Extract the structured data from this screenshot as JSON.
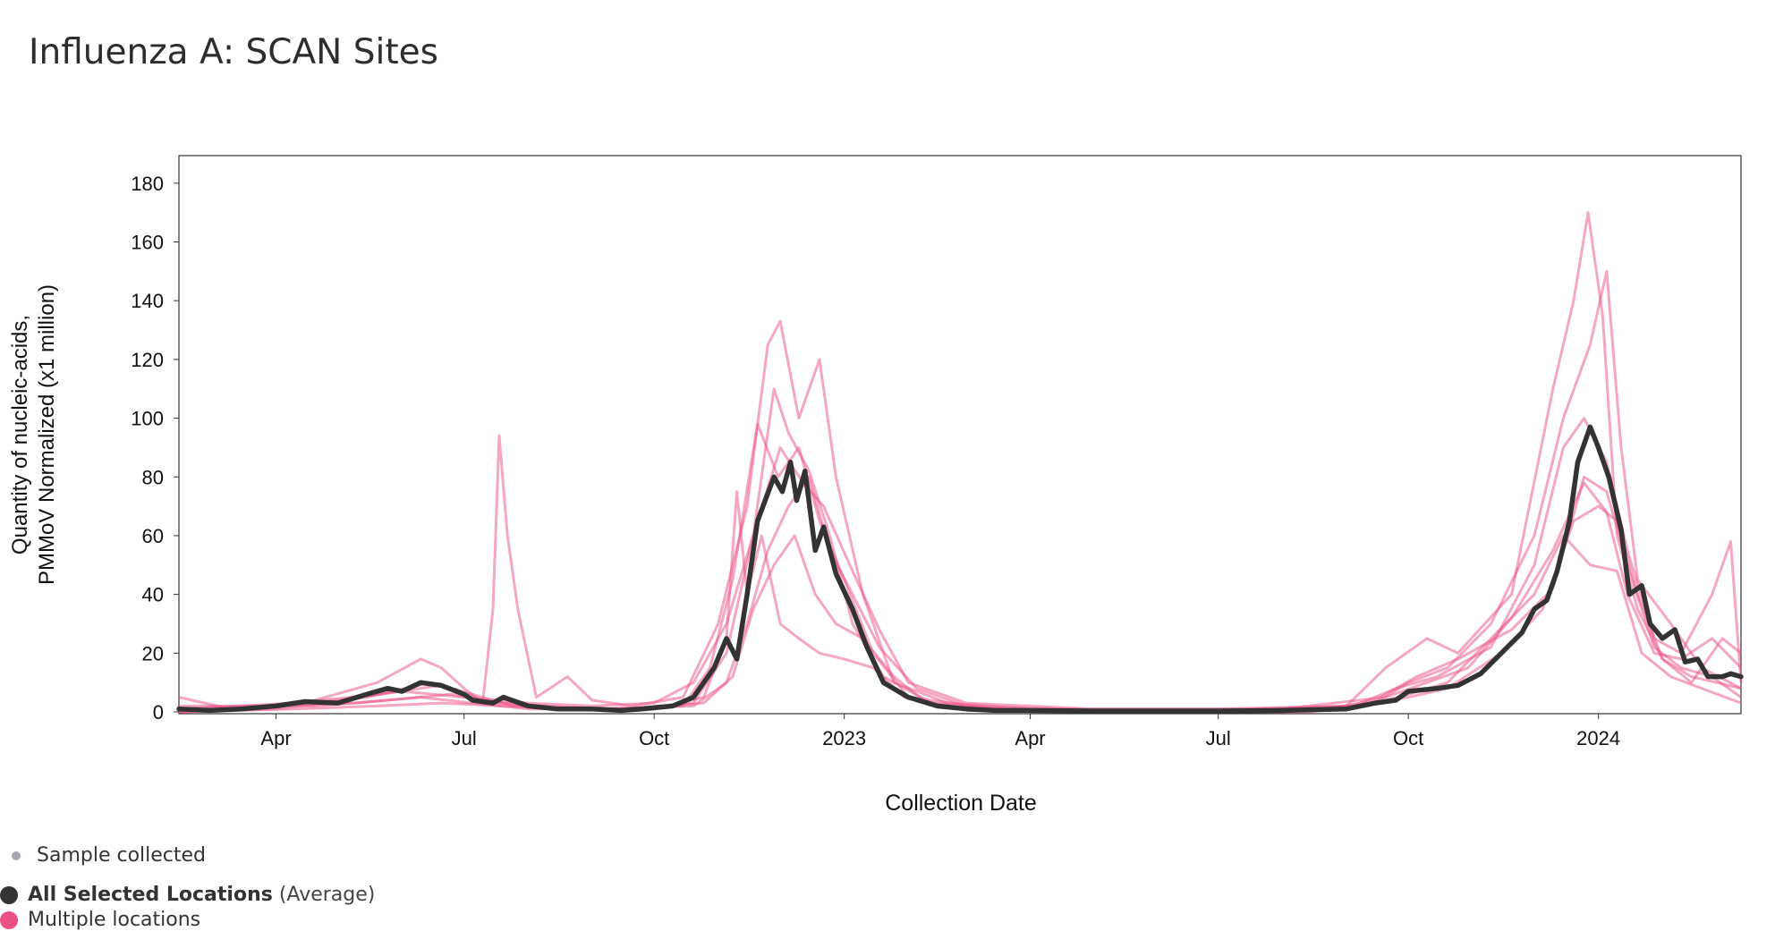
{
  "title": "Influenza A: SCAN Sites",
  "chart_data": {
    "type": "line",
    "title": "",
    "xlabel": "Collection Date",
    "ylabel_lines": [
      "Quantity of nucleic-acids,",
      "PMMoV Normalized (x1 million)"
    ],
    "xlim": [
      "2022-02-13",
      "2024-03-10"
    ],
    "ylim": [
      0,
      190
    ],
    "grid": false,
    "yticks": [
      0,
      20,
      40,
      60,
      80,
      100,
      120,
      140,
      160,
      180
    ],
    "xticks": [
      {
        "date": "2022-04-01",
        "label": "Apr"
      },
      {
        "date": "2022-07-01",
        "label": "Jul"
      },
      {
        "date": "2022-10-01",
        "label": "Oct"
      },
      {
        "date": "2023-01-01",
        "label": "2023"
      },
      {
        "date": "2023-04-01",
        "label": "Apr"
      },
      {
        "date": "2023-07-01",
        "label": "Jul"
      },
      {
        "date": "2023-10-01",
        "label": "Oct"
      },
      {
        "date": "2024-01-01",
        "label": "2024"
      }
    ],
    "average_series": {
      "name": "All Selected Locations",
      "color": "#333333",
      "points": [
        [
          "2022-02-13",
          1
        ],
        [
          "2022-02-28",
          0.5
        ],
        [
          "2022-03-15",
          1
        ],
        [
          "2022-04-01",
          2
        ],
        [
          "2022-04-15",
          3.5
        ],
        [
          "2022-05-01",
          3
        ],
        [
          "2022-05-15",
          6
        ],
        [
          "2022-05-25",
          8
        ],
        [
          "2022-06-01",
          7
        ],
        [
          "2022-06-10",
          10
        ],
        [
          "2022-06-20",
          9
        ],
        [
          "2022-07-01",
          6
        ],
        [
          "2022-07-05",
          4
        ],
        [
          "2022-07-15",
          3
        ],
        [
          "2022-07-20",
          5
        ],
        [
          "2022-08-01",
          2
        ],
        [
          "2022-08-15",
          1
        ],
        [
          "2022-09-01",
          1
        ],
        [
          "2022-09-15",
          0.5
        ],
        [
          "2022-09-25",
          1
        ],
        [
          "2022-10-10",
          2
        ],
        [
          "2022-10-20",
          5
        ],
        [
          "2022-10-30",
          15
        ],
        [
          "2022-11-05",
          25
        ],
        [
          "2022-11-10",
          18
        ],
        [
          "2022-11-15",
          40
        ],
        [
          "2022-11-20",
          65
        ],
        [
          "2022-11-28",
          80
        ],
        [
          "2022-12-02",
          75
        ],
        [
          "2022-12-06",
          85
        ],
        [
          "2022-12-09",
          72
        ],
        [
          "2022-12-13",
          82
        ],
        [
          "2022-12-18",
          55
        ],
        [
          "2022-12-22",
          63
        ],
        [
          "2022-12-28",
          47
        ],
        [
          "2023-01-05",
          35
        ],
        [
          "2023-01-12",
          22
        ],
        [
          "2023-01-20",
          10
        ],
        [
          "2023-02-01",
          5
        ],
        [
          "2023-02-15",
          2
        ],
        [
          "2023-03-01",
          1
        ],
        [
          "2023-03-15",
          0.5
        ],
        [
          "2023-04-01",
          0.5
        ],
        [
          "2023-05-01",
          0.3
        ],
        [
          "2023-06-01",
          0.3
        ],
        [
          "2023-07-01",
          0.3
        ],
        [
          "2023-08-01",
          0.5
        ],
        [
          "2023-09-01",
          1
        ],
        [
          "2023-09-15",
          3
        ],
        [
          "2023-09-25",
          4
        ],
        [
          "2023-10-01",
          7
        ],
        [
          "2023-10-15",
          8
        ],
        [
          "2023-10-25",
          9
        ],
        [
          "2023-11-05",
          13
        ],
        [
          "2023-11-15",
          20
        ],
        [
          "2023-11-25",
          27
        ],
        [
          "2023-12-01",
          35
        ],
        [
          "2023-12-07",
          38
        ],
        [
          "2023-12-12",
          48
        ],
        [
          "2023-12-18",
          65
        ],
        [
          "2023-12-22",
          85
        ],
        [
          "2023-12-28",
          97
        ],
        [
          "2024-01-01",
          90
        ],
        [
          "2024-01-06",
          80
        ],
        [
          "2024-01-12",
          62
        ],
        [
          "2024-01-16",
          40
        ],
        [
          "2024-01-22",
          43
        ],
        [
          "2024-01-26",
          30
        ],
        [
          "2024-02-01",
          25
        ],
        [
          "2024-02-07",
          28
        ],
        [
          "2024-02-12",
          17
        ],
        [
          "2024-02-18",
          18
        ],
        [
          "2024-02-23",
          12
        ],
        [
          "2024-03-01",
          12
        ],
        [
          "2024-03-05",
          13
        ],
        [
          "2024-03-10",
          12
        ]
      ]
    },
    "location_series": [
      [
        [
          "2022-02-13",
          5
        ],
        [
          "2022-03-10",
          1
        ],
        [
          "2022-04-15",
          3
        ],
        [
          "2022-05-20",
          10
        ],
        [
          "2022-06-10",
          18
        ],
        [
          "2022-06-20",
          15
        ],
        [
          "2022-07-01",
          8
        ],
        [
          "2022-07-10",
          3
        ],
        [
          "2022-07-15",
          35
        ],
        [
          "2022-07-18",
          94
        ],
        [
          "2022-07-22",
          60
        ],
        [
          "2022-07-27",
          35
        ],
        [
          "2022-08-05",
          5
        ],
        [
          "2022-08-20",
          12
        ],
        [
          "2022-09-01",
          4
        ],
        [
          "2022-09-20",
          2
        ],
        [
          "2022-10-15",
          5
        ],
        [
          "2022-11-01",
          30
        ],
        [
          "2022-11-15",
          70
        ],
        [
          "2022-11-25",
          125
        ],
        [
          "2022-12-01",
          133
        ],
        [
          "2022-12-10",
          100
        ],
        [
          "2022-12-20",
          120
        ],
        [
          "2022-12-28",
          80
        ],
        [
          "2023-01-10",
          40
        ],
        [
          "2023-01-25",
          10
        ],
        [
          "2023-02-20",
          3
        ],
        [
          "2023-04-01",
          1
        ],
        [
          "2023-07-01",
          1
        ],
        [
          "2023-09-01",
          2
        ],
        [
          "2023-09-20",
          15
        ],
        [
          "2023-10-10",
          25
        ],
        [
          "2023-10-25",
          20
        ],
        [
          "2023-11-20",
          40
        ],
        [
          "2023-12-10",
          110
        ],
        [
          "2023-12-20",
          140
        ],
        [
          "2023-12-27",
          170
        ],
        [
          "2024-01-03",
          135
        ],
        [
          "2024-01-10",
          60
        ],
        [
          "2024-01-20",
          35
        ],
        [
          "2024-02-01",
          18
        ],
        [
          "2024-02-15",
          10
        ],
        [
          "2024-03-01",
          25
        ],
        [
          "2024-03-10",
          20
        ]
      ],
      [
        [
          "2022-02-13",
          0
        ],
        [
          "2022-04-01",
          1
        ],
        [
          "2022-05-15",
          5
        ],
        [
          "2022-06-15",
          10
        ],
        [
          "2022-07-05",
          6
        ],
        [
          "2022-07-25",
          2
        ],
        [
          "2022-08-15",
          1
        ],
        [
          "2022-09-15",
          1
        ],
        [
          "2022-10-20",
          3
        ],
        [
          "2022-11-05",
          20
        ],
        [
          "2022-11-18",
          60
        ],
        [
          "2022-11-28",
          110
        ],
        [
          "2022-12-05",
          95
        ],
        [
          "2022-12-15",
          82
        ],
        [
          "2022-12-25",
          60
        ],
        [
          "2023-01-05",
          30
        ],
        [
          "2023-01-20",
          12
        ],
        [
          "2023-02-15",
          2
        ],
        [
          "2023-05-01",
          0
        ],
        [
          "2023-08-01",
          0
        ],
        [
          "2023-09-15",
          3
        ],
        [
          "2023-10-01",
          10
        ],
        [
          "2023-10-20",
          15
        ],
        [
          "2023-11-10",
          30
        ],
        [
          "2023-12-01",
          60
        ],
        [
          "2023-12-15",
          100
        ],
        [
          "2023-12-28",
          125
        ],
        [
          "2024-01-05",
          150
        ],
        [
          "2024-01-12",
          90
        ],
        [
          "2024-01-20",
          45
        ],
        [
          "2024-02-05",
          30
        ],
        [
          "2024-02-20",
          15
        ],
        [
          "2024-03-10",
          8
        ]
      ],
      [
        [
          "2022-02-13",
          1
        ],
        [
          "2022-04-10",
          3
        ],
        [
          "2022-05-20",
          6
        ],
        [
          "2022-06-20",
          9
        ],
        [
          "2022-07-10",
          4
        ],
        [
          "2022-08-01",
          2
        ],
        [
          "2022-09-01",
          1
        ],
        [
          "2022-10-15",
          2
        ],
        [
          "2022-10-28",
          15
        ],
        [
          "2022-11-08",
          45
        ],
        [
          "2022-11-20",
          98
        ],
        [
          "2022-11-30",
          80
        ],
        [
          "2022-12-10",
          90
        ],
        [
          "2022-12-20",
          65
        ],
        [
          "2023-01-01",
          45
        ],
        [
          "2023-01-15",
          20
        ],
        [
          "2023-02-01",
          5
        ],
        [
          "2023-03-15",
          1
        ],
        [
          "2023-06-01",
          0
        ],
        [
          "2023-09-01",
          1
        ],
        [
          "2023-09-25",
          8
        ],
        [
          "2023-10-15",
          12
        ],
        [
          "2023-11-10",
          22
        ],
        [
          "2023-12-01",
          50
        ],
        [
          "2023-12-15",
          90
        ],
        [
          "2023-12-25",
          100
        ],
        [
          "2024-01-05",
          85
        ],
        [
          "2024-01-15",
          55
        ],
        [
          "2024-01-28",
          25
        ],
        [
          "2024-02-10",
          20
        ],
        [
          "2024-02-25",
          40
        ],
        [
          "2024-03-05",
          58
        ],
        [
          "2024-03-10",
          10
        ]
      ],
      [
        [
          "2022-02-13",
          2
        ],
        [
          "2022-04-20",
          2
        ],
        [
          "2022-05-25",
          4
        ],
        [
          "2022-06-25",
          6
        ],
        [
          "2022-07-15",
          3
        ],
        [
          "2022-08-10",
          2
        ],
        [
          "2022-09-10",
          1
        ],
        [
          "2022-10-20",
          2
        ],
        [
          "2022-11-05",
          10
        ],
        [
          "2022-11-15",
          30
        ],
        [
          "2022-11-25",
          55
        ],
        [
          "2022-12-05",
          70
        ],
        [
          "2022-12-15",
          80
        ],
        [
          "2022-12-25",
          55
        ],
        [
          "2023-01-05",
          40
        ],
        [
          "2023-01-18",
          22
        ],
        [
          "2023-02-05",
          8
        ],
        [
          "2023-03-01",
          2
        ],
        [
          "2023-06-01",
          0
        ],
        [
          "2023-09-05",
          2
        ],
        [
          "2023-10-01",
          5
        ],
        [
          "2023-10-20",
          8
        ],
        [
          "2023-11-15",
          20
        ],
        [
          "2023-12-05",
          35
        ],
        [
          "2023-12-20",
          65
        ],
        [
          "2024-01-01",
          70
        ],
        [
          "2024-01-10",
          65
        ],
        [
          "2024-01-20",
          40
        ],
        [
          "2024-02-01",
          18
        ],
        [
          "2024-02-15",
          12
        ],
        [
          "2024-03-10",
          8
        ]
      ],
      [
        [
          "2022-02-13",
          0
        ],
        [
          "2022-04-01",
          2
        ],
        [
          "2022-05-10",
          3
        ],
        [
          "2022-06-10",
          5
        ],
        [
          "2022-07-05",
          3
        ],
        [
          "2022-08-01",
          1
        ],
        [
          "2022-09-20",
          1
        ],
        [
          "2022-10-25",
          3
        ],
        [
          "2022-11-08",
          12
        ],
        [
          "2022-11-18",
          35
        ],
        [
          "2022-11-28",
          50
        ],
        [
          "2022-12-08",
          60
        ],
        [
          "2022-12-18",
          40
        ],
        [
          "2022-12-28",
          30
        ],
        [
          "2023-01-10",
          25
        ],
        [
          "2023-01-25",
          12
        ],
        [
          "2023-02-10",
          3
        ],
        [
          "2023-04-01",
          0
        ],
        [
          "2023-08-15",
          0
        ],
        [
          "2023-09-15",
          4
        ],
        [
          "2023-10-05",
          12
        ],
        [
          "2023-10-25",
          18
        ],
        [
          "2023-11-20",
          28
        ],
        [
          "2023-12-10",
          42
        ],
        [
          "2023-12-25",
          80
        ],
        [
          "2024-01-05",
          75
        ],
        [
          "2024-01-15",
          50
        ],
        [
          "2024-01-28",
          22
        ],
        [
          "2024-02-10",
          15
        ],
        [
          "2024-02-25",
          12
        ],
        [
          "2024-03-10",
          5
        ]
      ],
      [
        [
          "2022-02-13",
          0
        ],
        [
          "2022-04-10",
          1
        ],
        [
          "2022-05-20",
          2
        ],
        [
          "2022-06-20",
          3
        ],
        [
          "2022-07-20",
          2
        ],
        [
          "2022-08-20",
          1
        ],
        [
          "2022-10-01",
          1
        ],
        [
          "2022-10-25",
          5
        ],
        [
          "2022-11-05",
          25
        ],
        [
          "2022-11-10",
          75
        ],
        [
          "2022-11-15",
          40
        ],
        [
          "2022-11-22",
          60
        ],
        [
          "2022-12-01",
          30
        ],
        [
          "2022-12-10",
          25
        ],
        [
          "2022-12-20",
          20
        ],
        [
          "2023-01-01",
          18
        ],
        [
          "2023-01-15",
          15
        ],
        [
          "2023-01-30",
          5
        ],
        [
          "2023-03-01",
          1
        ],
        [
          "2023-07-01",
          0
        ],
        [
          "2023-09-10",
          2
        ],
        [
          "2023-10-01",
          6
        ],
        [
          "2023-10-20",
          10
        ],
        [
          "2023-11-10",
          25
        ],
        [
          "2023-12-01",
          40
        ],
        [
          "2023-12-15",
          60
        ],
        [
          "2023-12-28",
          50
        ],
        [
          "2024-01-10",
          48
        ],
        [
          "2024-01-22",
          20
        ],
        [
          "2024-02-05",
          12
        ],
        [
          "2024-02-20",
          8
        ],
        [
          "2024-03-10",
          3
        ]
      ],
      [
        [
          "2022-02-13",
          1
        ],
        [
          "2022-04-01",
          2
        ],
        [
          "2022-05-01",
          4
        ],
        [
          "2022-06-01",
          7
        ],
        [
          "2022-07-01",
          5
        ],
        [
          "2022-08-01",
          3
        ],
        [
          "2022-09-01",
          2
        ],
        [
          "2022-10-01",
          3
        ],
        [
          "2022-10-20",
          10
        ],
        [
          "2022-11-05",
          30
        ],
        [
          "2022-11-20",
          65
        ],
        [
          "2022-12-01",
          90
        ],
        [
          "2022-12-12",
          78
        ],
        [
          "2022-12-22",
          70
        ],
        [
          "2023-01-05",
          48
        ],
        [
          "2023-01-18",
          28
        ],
        [
          "2023-02-01",
          10
        ],
        [
          "2023-03-01",
          3
        ],
        [
          "2023-05-01",
          1
        ],
        [
          "2023-08-01",
          1
        ],
        [
          "2023-09-20",
          5
        ],
        [
          "2023-10-10",
          10
        ],
        [
          "2023-10-30",
          15
        ],
        [
          "2023-11-20",
          32
        ],
        [
          "2023-12-10",
          55
        ],
        [
          "2023-12-25",
          78
        ],
        [
          "2024-01-05",
          68
        ],
        [
          "2024-01-15",
          40
        ],
        [
          "2024-01-28",
          20
        ],
        [
          "2024-02-10",
          18
        ],
        [
          "2024-02-25",
          25
        ],
        [
          "2024-03-10",
          15
        ]
      ]
    ],
    "location_color": "#ec4f86"
  },
  "axis_labels": {
    "x": "Collection Date",
    "y_line1": "Quantity of nucleic-acids,",
    "y_line2": "PMMoV Normalized (x1 million)"
  },
  "legend": {
    "sample_label": "Sample collected",
    "sample_color": "#a6a6b0",
    "average_label": "All Selected Locations",
    "average_suffix": "(Average)",
    "average_color": "#333333",
    "locations_label": "Multiple locations",
    "locations_color": "#ec4f86"
  }
}
